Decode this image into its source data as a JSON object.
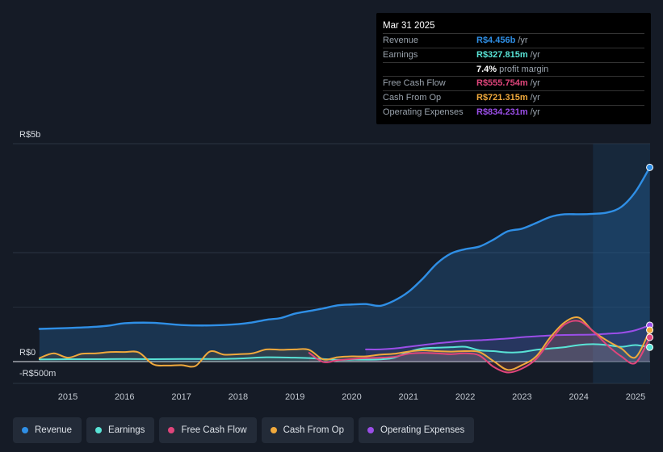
{
  "tooltip": {
    "date": "Mar 31 2025",
    "rows": [
      {
        "label": "Revenue",
        "value": "R$4.456b",
        "unit": "/yr",
        "color": "#2f8fe6"
      },
      {
        "label": "Earnings",
        "value": "R$327.815m",
        "unit": "/yr",
        "color": "#59e3d6"
      },
      {
        "label": "",
        "value": "7.4%",
        "unit": "profit margin",
        "color": "#ffffff"
      },
      {
        "label": "Free Cash Flow",
        "value": "R$555.754m",
        "unit": "/yr",
        "color": "#e0457b"
      },
      {
        "label": "Cash From Op",
        "value": "R$721.315m",
        "unit": "/yr",
        "color": "#f0a93c"
      },
      {
        "label": "Operating Expenses",
        "value": "R$834.231m",
        "unit": "/yr",
        "color": "#9b4ee8"
      }
    ]
  },
  "legend": [
    {
      "label": "Revenue",
      "color": "#2f8fe6",
      "icon": "revenue-dot-icon"
    },
    {
      "label": "Earnings",
      "color": "#59e3d6",
      "icon": "earnings-dot-icon"
    },
    {
      "label": "Free Cash Flow",
      "color": "#e0457b",
      "icon": "free-cash-flow-dot-icon"
    },
    {
      "label": "Cash From Op",
      "color": "#f0a93c",
      "icon": "cash-from-op-dot-icon"
    },
    {
      "label": "Operating Expenses",
      "color": "#9b4ee8",
      "icon": "operating-expenses-dot-icon"
    }
  ],
  "chart_data": {
    "type": "line",
    "title": "",
    "xlabel": "",
    "ylabel": "",
    "ylim": [
      -500,
      5000
    ],
    "y_tick_labels": [
      {
        "label": "R$5b",
        "value": 5000
      },
      {
        "label": "R$0",
        "value": 0
      },
      {
        "label": "-R$500m",
        "value": -500
      }
    ],
    "x_ticks": [
      "2015",
      "2016",
      "2017",
      "2018",
      "2019",
      "2020",
      "2021",
      "2022",
      "2023",
      "2024",
      "2025"
    ],
    "x_range": [
      2014.5,
      2025.25
    ],
    "highlight_range": [
      2024.25,
      2025.25
    ],
    "series": [
      {
        "name": "Revenue",
        "color": "#2f8fe6",
        "x": [
          2014.5,
          2015.0,
          2015.5,
          2015.75,
          2016.0,
          2016.5,
          2017.0,
          2017.5,
          2018.0,
          2018.25,
          2018.5,
          2018.75,
          2019.0,
          2019.25,
          2019.5,
          2019.75,
          2020.0,
          2020.25,
          2020.5,
          2020.75,
          2021.0,
          2021.25,
          2021.5,
          2021.75,
          2022.0,
          2022.25,
          2022.5,
          2022.75,
          2023.0,
          2023.25,
          2023.5,
          2023.75,
          2024.0,
          2024.25,
          2024.5,
          2024.75,
          2025.0,
          2025.25
        ],
        "values": [
          750,
          770,
          800,
          830,
          880,
          890,
          840,
          830,
          860,
          900,
          960,
          1000,
          1100,
          1160,
          1220,
          1290,
          1310,
          1320,
          1280,
          1400,
          1600,
          1900,
          2250,
          2480,
          2580,
          2640,
          2800,
          2990,
          3050,
          3180,
          3320,
          3380,
          3380,
          3390,
          3420,
          3550,
          3900,
          4456
        ]
      },
      {
        "name": "Earnings",
        "color": "#59e3d6",
        "x": [
          2014.5,
          2015.0,
          2015.5,
          2016.0,
          2016.5,
          2017.0,
          2017.5,
          2018.0,
          2018.5,
          2019.0,
          2019.25,
          2019.5,
          2019.75,
          2020.0,
          2020.25,
          2020.5,
          2020.75,
          2021.0,
          2021.25,
          2021.5,
          2021.75,
          2022.0,
          2022.25,
          2022.5,
          2022.75,
          2023.0,
          2023.25,
          2023.5,
          2023.75,
          2024.0,
          2024.25,
          2024.5,
          2024.75,
          2025.0,
          2025.25
        ],
        "values": [
          50,
          55,
          55,
          60,
          55,
          60,
          60,
          70,
          100,
          90,
          80,
          60,
          40,
          45,
          45,
          50,
          90,
          220,
          300,
          320,
          330,
          340,
          260,
          240,
          210,
          220,
          270,
          300,
          330,
          380,
          400,
          380,
          340,
          380,
          327.815
        ]
      },
      {
        "name": "Free Cash Flow",
        "color": "#e0457b",
        "x": [
          2019.25,
          2019.5,
          2019.75,
          2020.0,
          2020.25,
          2020.5,
          2020.75,
          2021.0,
          2021.25,
          2021.5,
          2021.75,
          2022.0,
          2022.25,
          2022.5,
          2022.75,
          2023.0,
          2023.25,
          2023.5,
          2023.75,
          2024.0,
          2024.25,
          2024.5,
          2024.75,
          2025.0,
          2025.25
        ],
        "values": [
          200,
          -10,
          30,
          60,
          80,
          90,
          110,
          180,
          200,
          190,
          170,
          190,
          140,
          -120,
          -250,
          -160,
          60,
          480,
          850,
          930,
          700,
          380,
          120,
          -30,
          555.754
        ]
      },
      {
        "name": "Cash From Op",
        "color": "#f0a93c",
        "x": [
          2014.5,
          2014.75,
          2015.0,
          2015.25,
          2015.5,
          2015.75,
          2016.0,
          2016.25,
          2016.5,
          2016.75,
          2017.0,
          2017.25,
          2017.5,
          2017.75,
          2018.0,
          2018.25,
          2018.5,
          2018.75,
          2019.0,
          2019.25,
          2019.5,
          2019.75,
          2020.0,
          2020.25,
          2020.5,
          2020.75,
          2021.0,
          2021.25,
          2021.5,
          2021.75,
          2022.0,
          2022.25,
          2022.5,
          2022.75,
          2023.0,
          2023.25,
          2023.5,
          2023.75,
          2024.0,
          2024.25,
          2024.5,
          2024.75,
          2025.0,
          2025.25
        ],
        "values": [
          80,
          190,
          90,
          180,
          190,
          220,
          220,
          210,
          -60,
          -90,
          -80,
          -100,
          230,
          160,
          170,
          190,
          280,
          270,
          280,
          270,
          50,
          100,
          120,
          120,
          160,
          180,
          230,
          260,
          240,
          230,
          240,
          220,
          10,
          -190,
          -80,
          120,
          560,
          900,
          1010,
          700,
          480,
          300,
          100,
          721.315
        ]
      },
      {
        "name": "Operating Expenses",
        "color": "#9b4ee8",
        "x": [
          2020.25,
          2020.5,
          2020.75,
          2021.0,
          2021.25,
          2021.5,
          2021.75,
          2022.0,
          2022.25,
          2022.5,
          2022.75,
          2023.0,
          2023.25,
          2023.5,
          2023.75,
          2024.0,
          2024.25,
          2024.5,
          2024.75,
          2025.0,
          2025.25
        ],
        "values": [
          280,
          280,
          300,
          340,
          380,
          420,
          450,
          480,
          490,
          510,
          530,
          560,
          580,
          600,
          610,
          615,
          620,
          640,
          660,
          720,
          834.231
        ]
      }
    ]
  }
}
